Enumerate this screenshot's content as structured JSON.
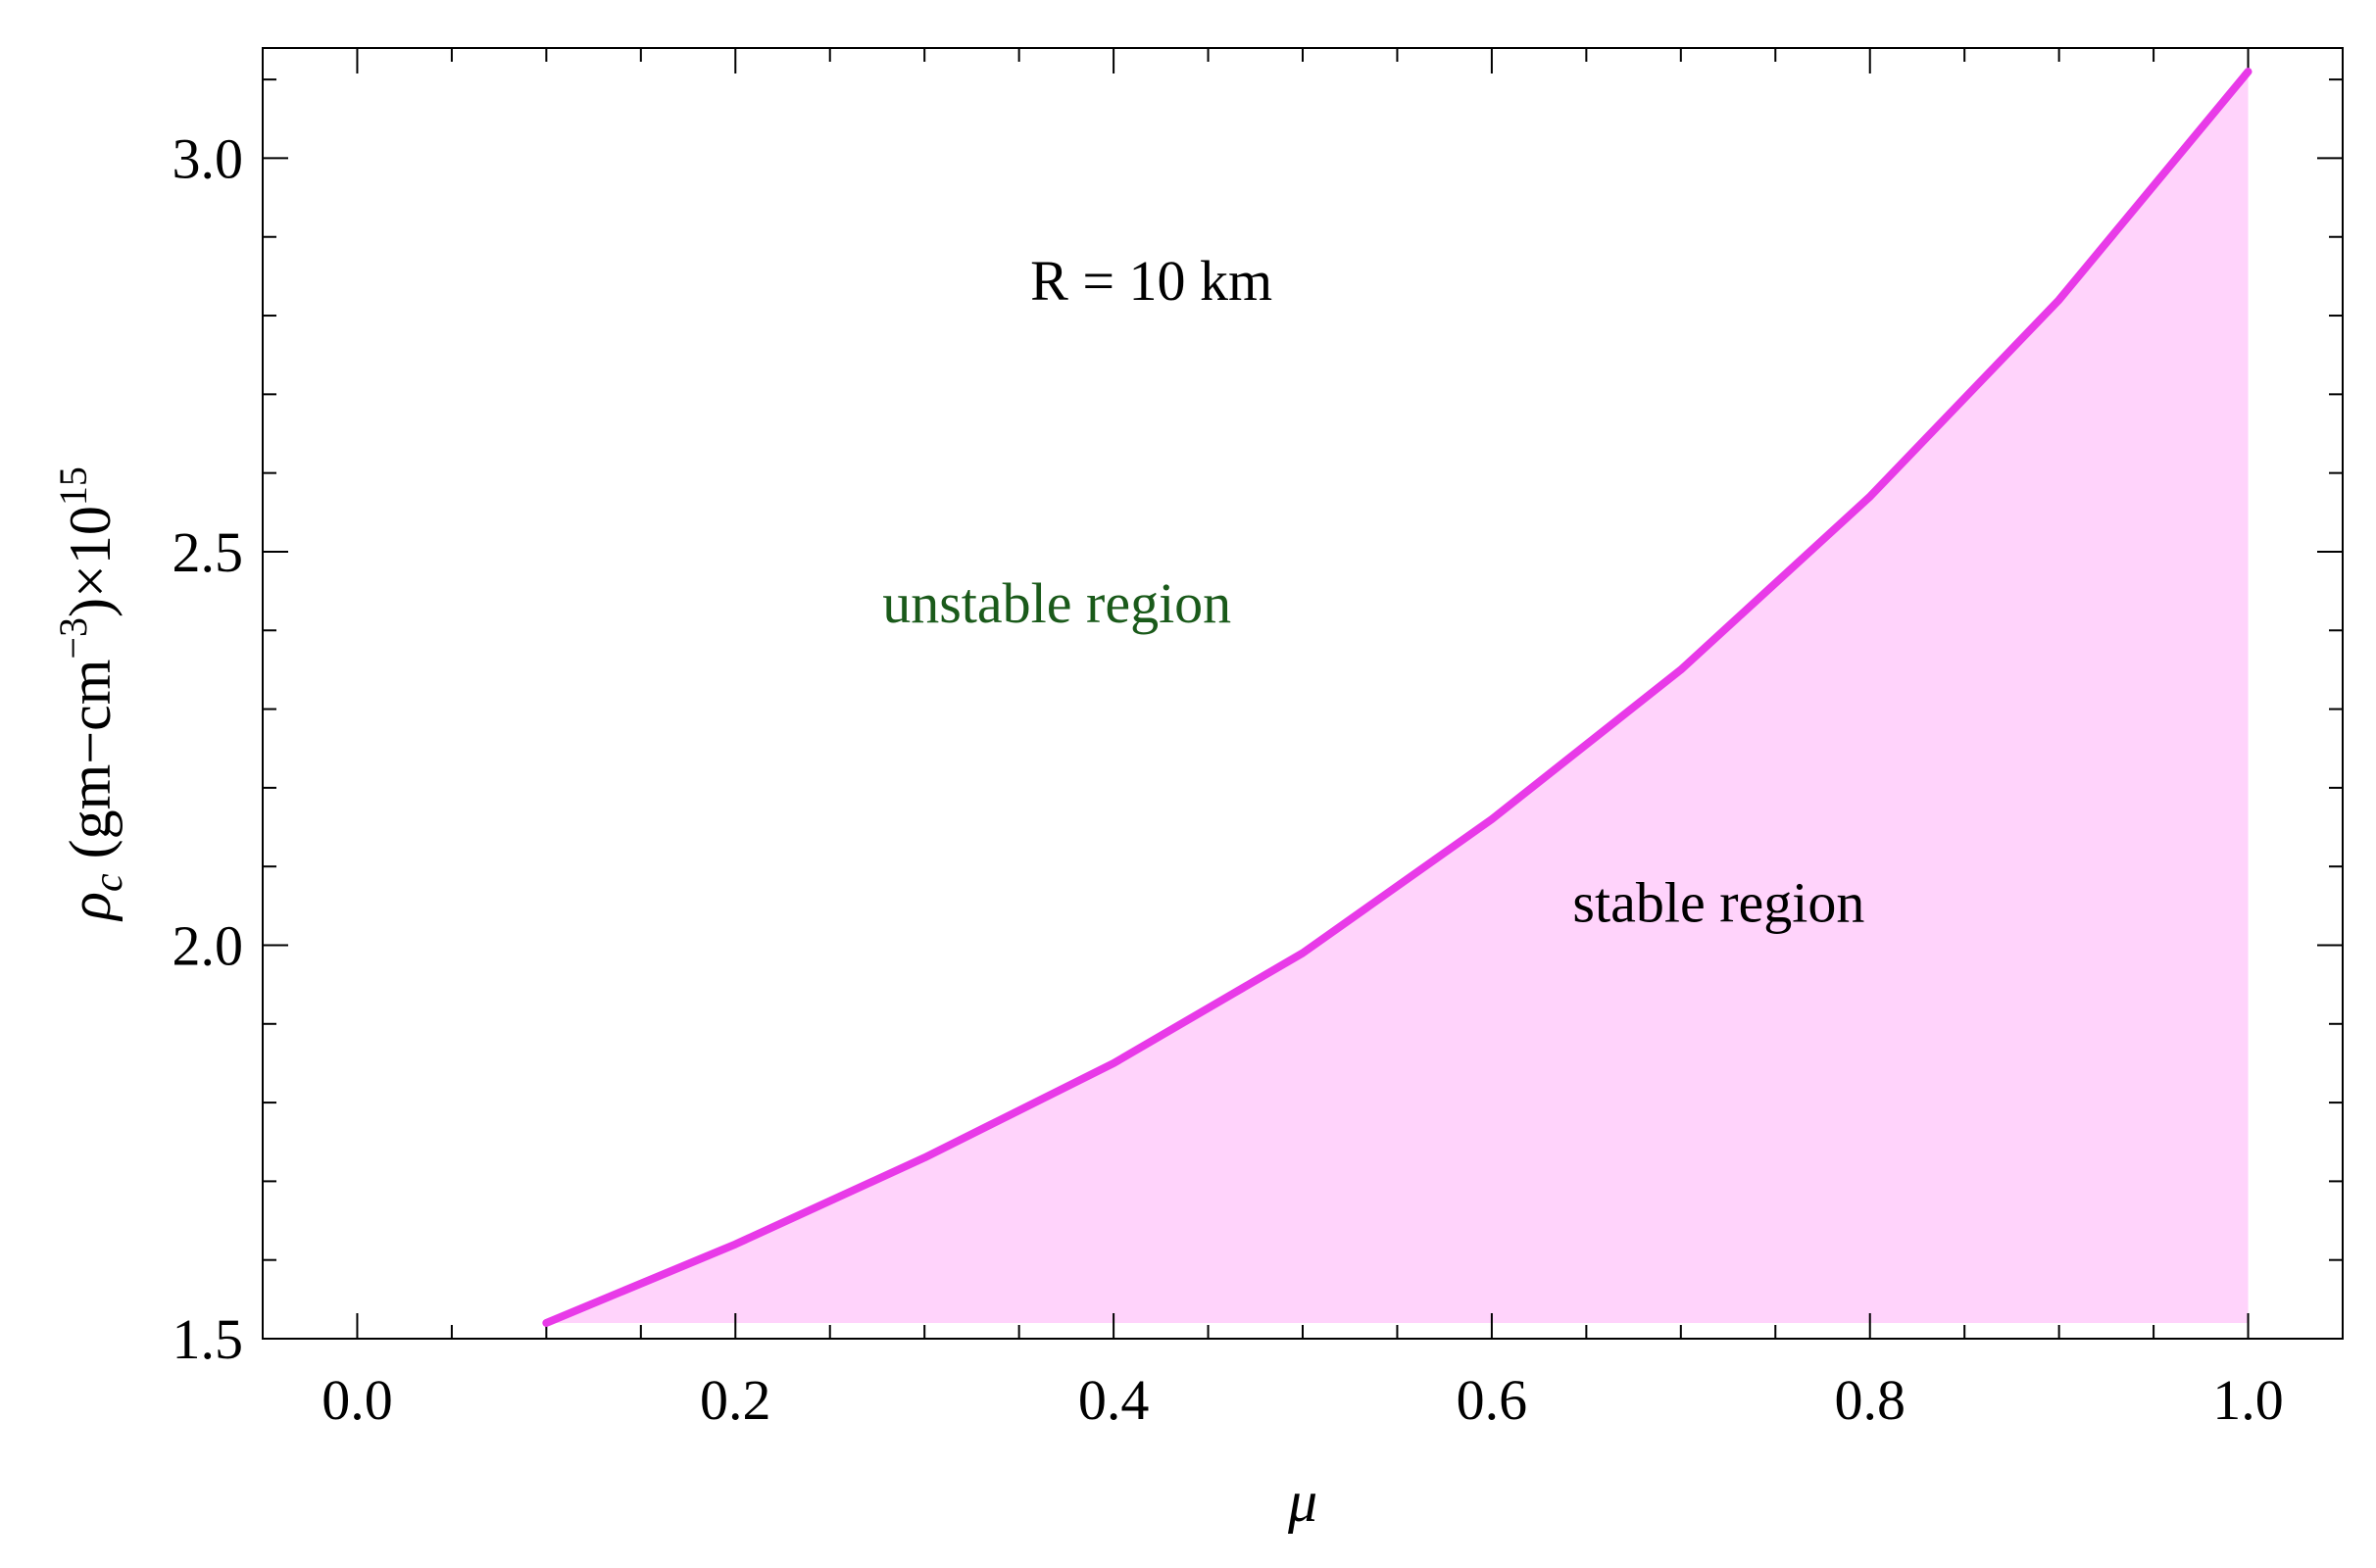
{
  "chart_data": {
    "type": "area",
    "title": "",
    "xlabel": "μ",
    "ylabel": {
      "symbol": "ρ",
      "subscript": "c",
      "units": " (gm−cm",
      "units_exp": "−3",
      "units_close": ")×10",
      "scale_exp": "15"
    },
    "xlim": [
      -0.05,
      1.05
    ],
    "ylim": [
      1.5,
      3.14
    ],
    "x_ticks": [
      {
        "value": 0.0,
        "label": "0.0"
      },
      {
        "value": 0.2,
        "label": "0.2"
      },
      {
        "value": 0.4,
        "label": "0.4"
      },
      {
        "value": 0.6,
        "label": "0.6"
      },
      {
        "value": 0.8,
        "label": "0.8"
      },
      {
        "value": 1.0,
        "label": "1.0"
      }
    ],
    "y_ticks": [
      {
        "value": 1.5,
        "label": "1.5"
      },
      {
        "value": 2.0,
        "label": "2.0"
      },
      {
        "value": 2.5,
        "label": "2.5"
      },
      {
        "value": 3.0,
        "label": "3.0"
      }
    ],
    "x_minor_step": 0.05,
    "y_minor_step": 0.1,
    "grid": false,
    "series": [
      {
        "x": [
          0.1,
          0.2,
          0.3,
          0.4,
          0.5,
          0.6,
          0.7,
          0.8,
          0.9,
          1.0
        ],
        "y": [
          1.52,
          1.62,
          1.73,
          1.85,
          1.99,
          2.16,
          2.35,
          2.57,
          2.82,
          3.11
        ],
        "color": "#e83ae8",
        "fill": "#ffd3fb",
        "fill_baseline": 1.52
      }
    ],
    "annotations": [
      {
        "text": "R = 10 km",
        "x": 0.42,
        "y": 2.82,
        "color": "#000000"
      },
      {
        "text": "unstable region",
        "x": 0.37,
        "y": 2.41,
        "color": "#1a5a1a"
      },
      {
        "text": "stable region",
        "x": 0.72,
        "y": 2.03,
        "color": "#000000"
      }
    ]
  }
}
